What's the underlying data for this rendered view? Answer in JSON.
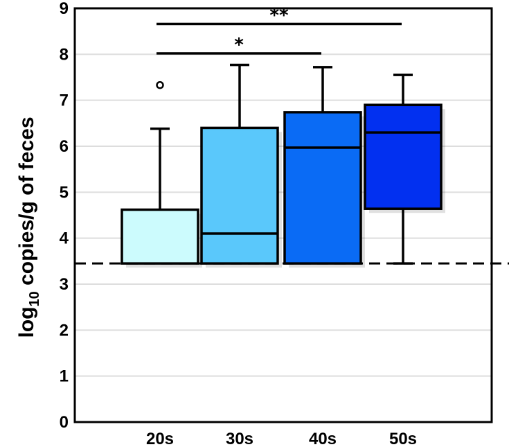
{
  "chart_data": {
    "type": "boxplot",
    "title": "",
    "ylabel": {
      "prefix": "log",
      "subscript": "10",
      "suffix": " copies/g of feces"
    },
    "xlabel": "",
    "ylim": [
      0,
      9
    ],
    "yticks": [
      "0",
      "1",
      "2",
      "3",
      "4",
      "5",
      "6",
      "7",
      "8",
      "9"
    ],
    "grid": true,
    "categories": [
      "20s",
      "30s",
      "40s",
      "50s"
    ],
    "boxes": [
      {
        "name": "20s",
        "whisker_low": 3.45,
        "q1": 3.45,
        "median": 3.45,
        "q3": 4.62,
        "whisker_high": 6.38,
        "outliers": [
          7.33
        ],
        "color": "#ccfbfd"
      },
      {
        "name": "30s",
        "whisker_low": 3.45,
        "q1": 3.45,
        "median": 4.1,
        "q3": 6.4,
        "whisker_high": 7.77,
        "outliers": [],
        "color": "#5ac8fb"
      },
      {
        "name": "40s",
        "whisker_low": 3.45,
        "q1": 3.45,
        "median": 5.97,
        "q3": 6.74,
        "whisker_high": 7.72,
        "outliers": [],
        "color": "#0a6bf5"
      },
      {
        "name": "50s",
        "whisker_low": 3.45,
        "q1": 4.64,
        "median": 6.3,
        "q3": 6.9,
        "whisker_high": 7.55,
        "outliers": [],
        "color": "#0230f0"
      }
    ],
    "detection_limit": 3.45,
    "significance": [
      {
        "from": "20s",
        "to": "40s",
        "label": "*",
        "y": 8.02
      },
      {
        "from": "20s",
        "to": "50s",
        "label": "**",
        "y": 8.66
      }
    ]
  }
}
